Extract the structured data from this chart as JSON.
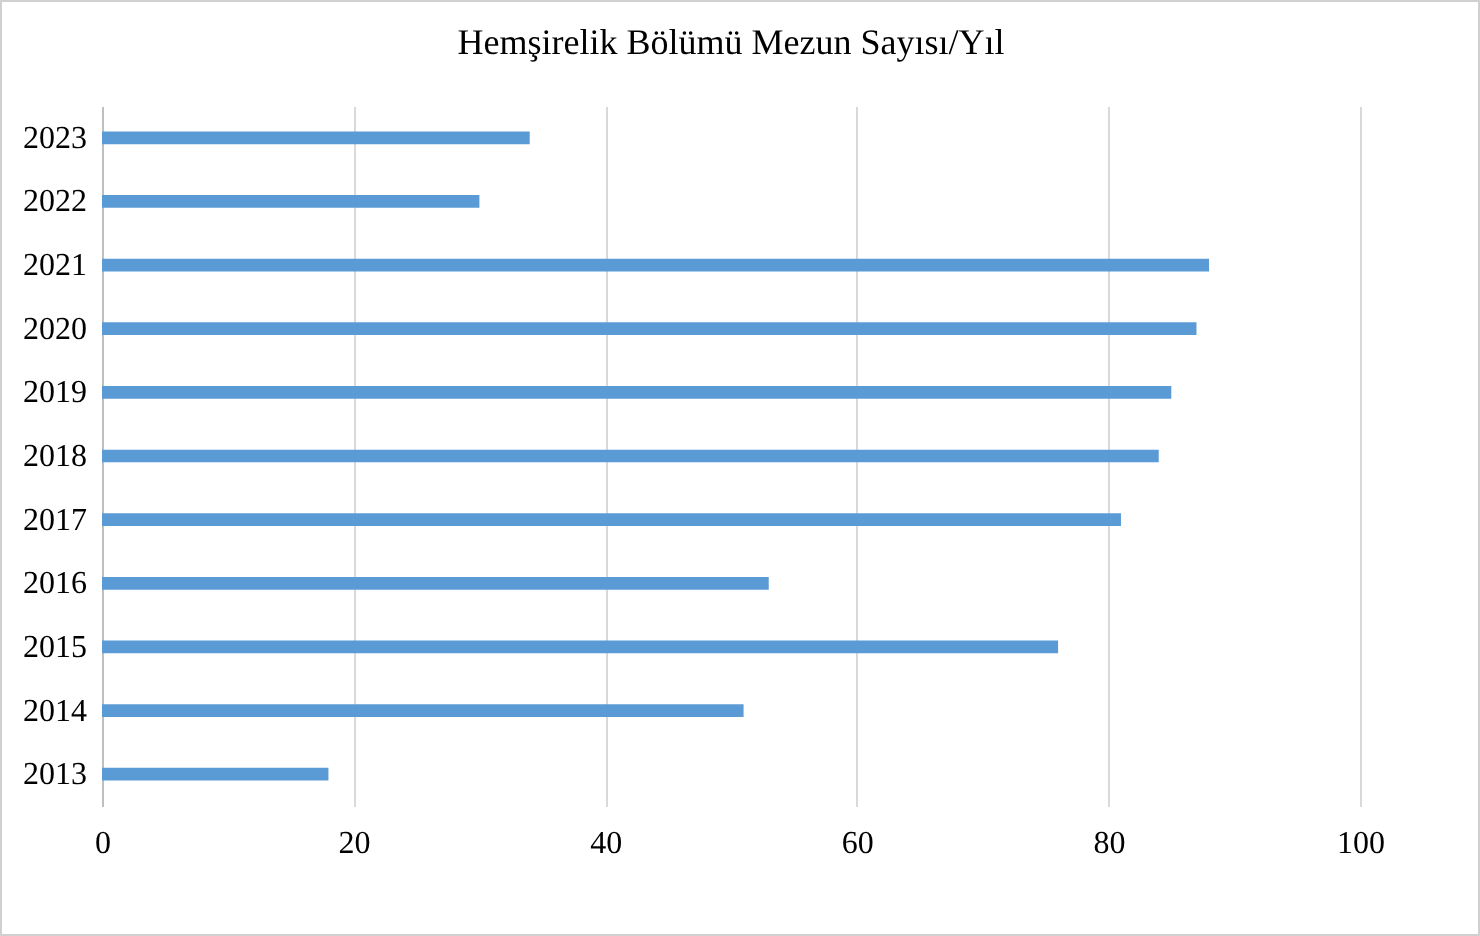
{
  "chart_data": {
    "type": "bar",
    "orientation": "horizontal",
    "title": "Hemşirelik  Bölümü  Mezun Sayısı/Yıl",
    "categories": [
      "2023",
      "2022",
      "2021",
      "2020",
      "2019",
      "2018",
      "2017",
      "2016",
      "2015",
      "2014",
      "2013"
    ],
    "values": [
      34,
      30,
      88,
      87,
      85,
      84,
      81,
      53,
      76,
      51,
      18
    ],
    "color": "#5b9bd5",
    "xlim": [
      0,
      100
    ],
    "xticks": [
      0,
      20,
      40,
      60,
      80,
      100
    ],
    "grid": "x"
  }
}
